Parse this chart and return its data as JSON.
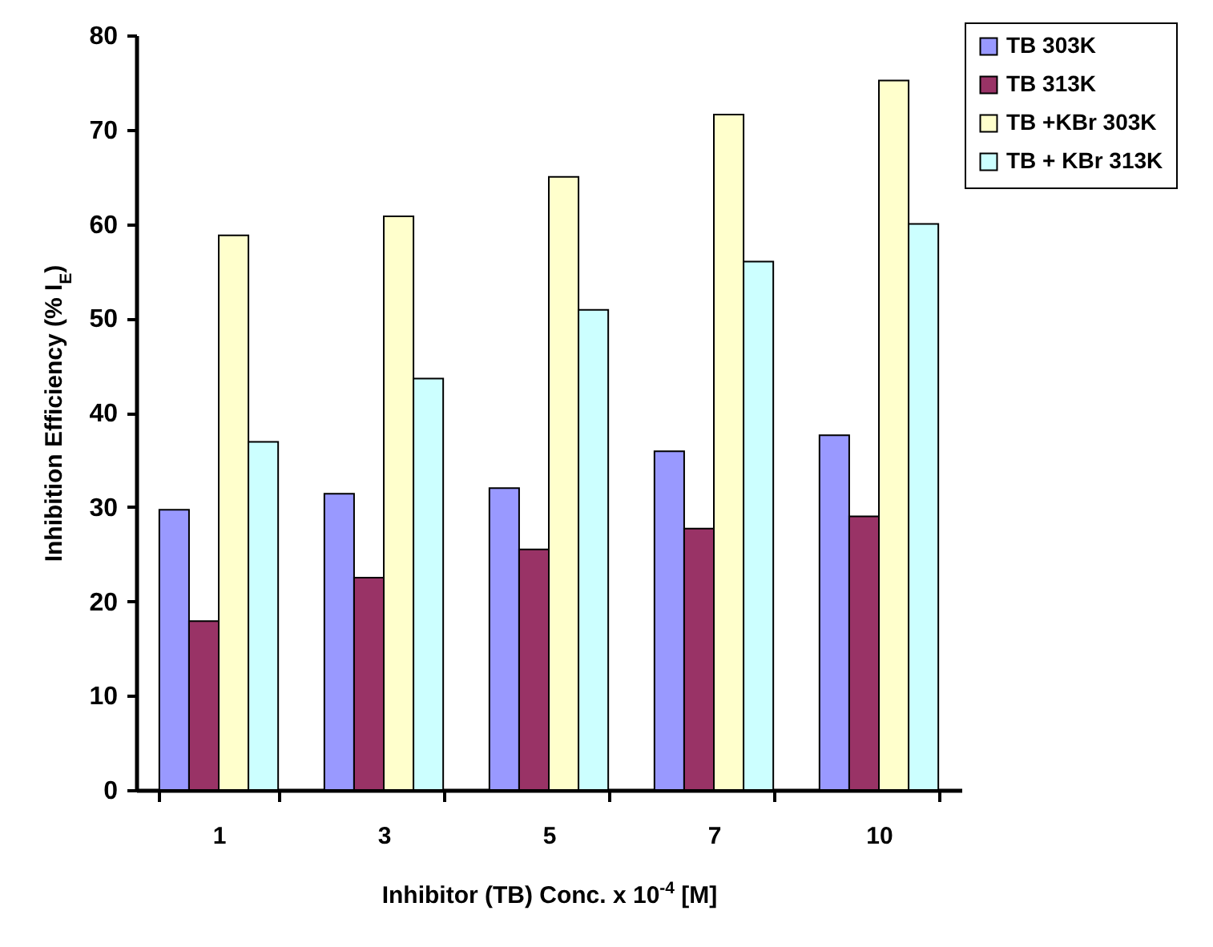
{
  "chart_data": {
    "type": "bar",
    "xlabel": "Inhibitor (TB) Conc. x 10$^{-4}$ [M]",
    "ylabel": "Inhibition Efficiency (% I$_{E}$)",
    "categories": [
      "1",
      "3",
      "5",
      "7",
      "10"
    ],
    "series": [
      {
        "name": "TB 303K",
        "color": "#9999ff",
        "values": [
          29.7,
          31.4,
          32.0,
          35.9,
          37.6
        ]
      },
      {
        "name": "TB 313K",
        "color": "#993366",
        "values": [
          17.9,
          22.5,
          25.5,
          27.7,
          29.0
        ]
      },
      {
        "name": "TB +KBr 303K",
        "color": "#ffffcc",
        "values": [
          58.8,
          60.8,
          65.0,
          71.6,
          75.2
        ]
      },
      {
        "name": "TB + KBr 313K",
        "color": "#ccffff",
        "values": [
          36.9,
          43.6,
          50.9,
          56.0,
          60.0
        ]
      }
    ],
    "ylim": [
      0,
      80
    ],
    "yticks": [
      0,
      10,
      20,
      30,
      40,
      50,
      60,
      70,
      80
    ],
    "grid": false,
    "legend": "top right"
  }
}
